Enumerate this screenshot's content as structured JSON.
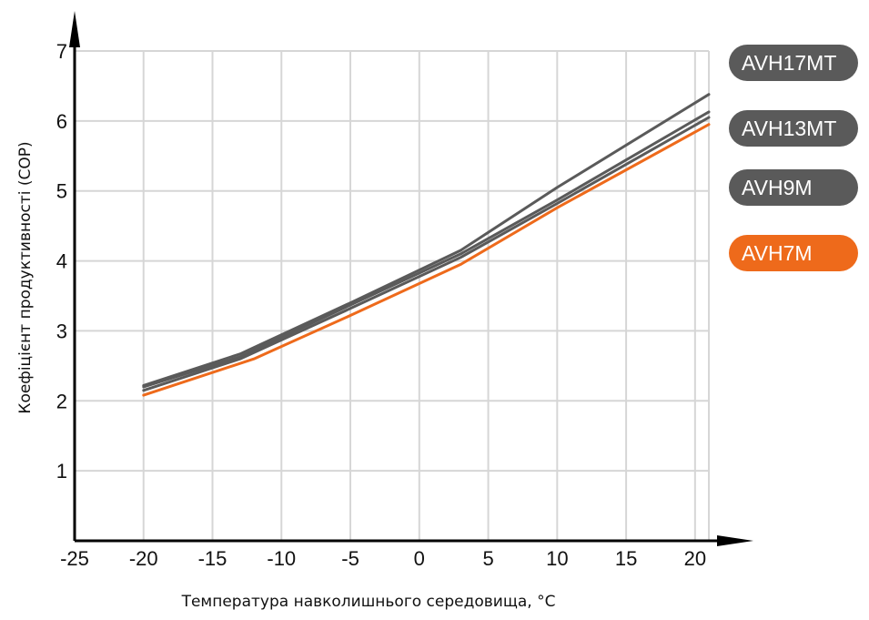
{
  "chart_data": {
    "type": "line",
    "xlabel": "Температура навколишнього середовища, °C",
    "ylabel": "Коефіцієнт продуктивності (COP)",
    "xlim": [
      -25,
      21
    ],
    "ylim": [
      0,
      7
    ],
    "xticks": [
      -25,
      -20,
      -15,
      -10,
      -5,
      0,
      5,
      10,
      15,
      20
    ],
    "yticks": [
      1,
      2,
      3,
      4,
      5,
      6,
      7
    ],
    "grid": true,
    "legend_position": "right",
    "series": [
      {
        "name": "AVH17MT",
        "color": "#5a5a5a",
        "x": [
          -20,
          -13,
          -5,
          3,
          10,
          21
        ],
        "y": [
          2.22,
          2.67,
          3.4,
          4.15,
          5.05,
          6.38
        ]
      },
      {
        "name": "AVH13MT",
        "color": "#5a5a5a",
        "x": [
          -20,
          -13,
          -5,
          3,
          10,
          21
        ],
        "y": [
          2.2,
          2.63,
          3.37,
          4.1,
          4.87,
          6.13
        ]
      },
      {
        "name": "AVH9M",
        "color": "#5a5a5a",
        "x": [
          -20,
          -13,
          -5,
          3,
          10,
          21
        ],
        "y": [
          2.15,
          2.6,
          3.32,
          4.05,
          4.82,
          6.05
        ]
      },
      {
        "name": "AVH7M",
        "color": "#ee6a1b",
        "x": [
          -20,
          -12,
          -5,
          3,
          10,
          21
        ],
        "y": [
          2.08,
          2.6,
          3.22,
          3.95,
          4.76,
          5.95
        ]
      }
    ]
  }
}
